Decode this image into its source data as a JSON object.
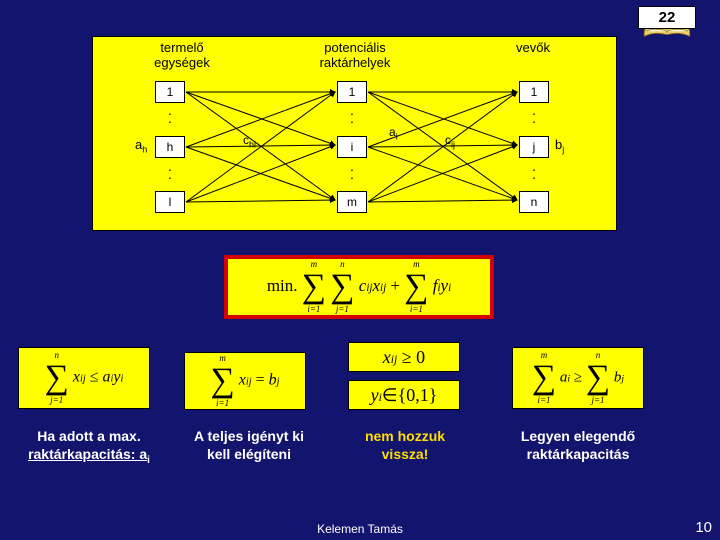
{
  "page_badge": "22",
  "page_number_footer": "10",
  "footer_author": "Kelemen Tamás",
  "diagram": {
    "headers": [
      "termelő\negységek",
      "potenciális\nraktárhelyek",
      "vevők"
    ],
    "columns": {
      "A": [
        "1",
        "h",
        "l"
      ],
      "B": [
        "1",
        "i",
        "m"
      ],
      "C": [
        "1",
        "j",
        "n"
      ]
    },
    "side_labels": {
      "a_h_left": "a",
      "a_h_sub": "h",
      "b_j_right": "b",
      "b_j_sub": "j"
    },
    "edge_labels": {
      "c_hi": "c",
      "c_hi_sub": "hi",
      "a_i": "a",
      "a_i_sub": "i",
      "c_ij": "c",
      "c_ij_sub": "ij"
    },
    "colors": {
      "panel_bg": "#ffff00",
      "border": "#000000"
    }
  },
  "main_formula": {
    "prefix": "min.",
    "sum1_top": "m",
    "sum1_bot": "i=1",
    "sum2_top": "n",
    "sum2_bot": "j=1",
    "term1": "c",
    "term1_sub": "ij",
    "term2": "x",
    "term2_sub": "ij",
    "sum3_top": "m",
    "sum3_bot": "i=1",
    "term3": "f",
    "term3_sub": "i",
    "term4": "y",
    "term4_sub": "i",
    "accent": "#d40000"
  },
  "formulas_row": {
    "f1": {
      "sum_top": "n",
      "sum_bot": "j=1",
      "lhs": "x",
      "lhs_sub": "ij",
      "op": "≤",
      "rhs1": "a",
      "rhs1_sub": "i",
      "rhs2": "y",
      "rhs2_sub": "i"
    },
    "f2": {
      "sum_top": "m",
      "sum_bot": "i=1",
      "lhs": "x",
      "lhs_sub": "ij",
      "op": "=",
      "rhs": "b",
      "rhs_sub": "j"
    },
    "f3": {
      "var": "x",
      "var_sub": "ij",
      "op": "≥ 0"
    },
    "f4": {
      "var": "y",
      "var_sub": "i",
      "op": "∈{0,1}"
    },
    "f5": {
      "sum_top": "m",
      "sum_bot": "i=1",
      "lhs": "a",
      "lhs_sub": "i",
      "op": "≥",
      "rhs": "b",
      "rhs_sub": "j",
      "sum2_top": "n",
      "sum2_bot": "j=1"
    }
  },
  "captions": {
    "c1a": "Ha adott a max.",
    "c1b_pre": "raktárkapacitás: a",
    "c1b_sub": "i",
    "c2": "A teljes igényt ki kell elégíteni",
    "c3": "nem hozzuk vissza!",
    "c4": "Legyen elegendő raktárkapacitás"
  }
}
